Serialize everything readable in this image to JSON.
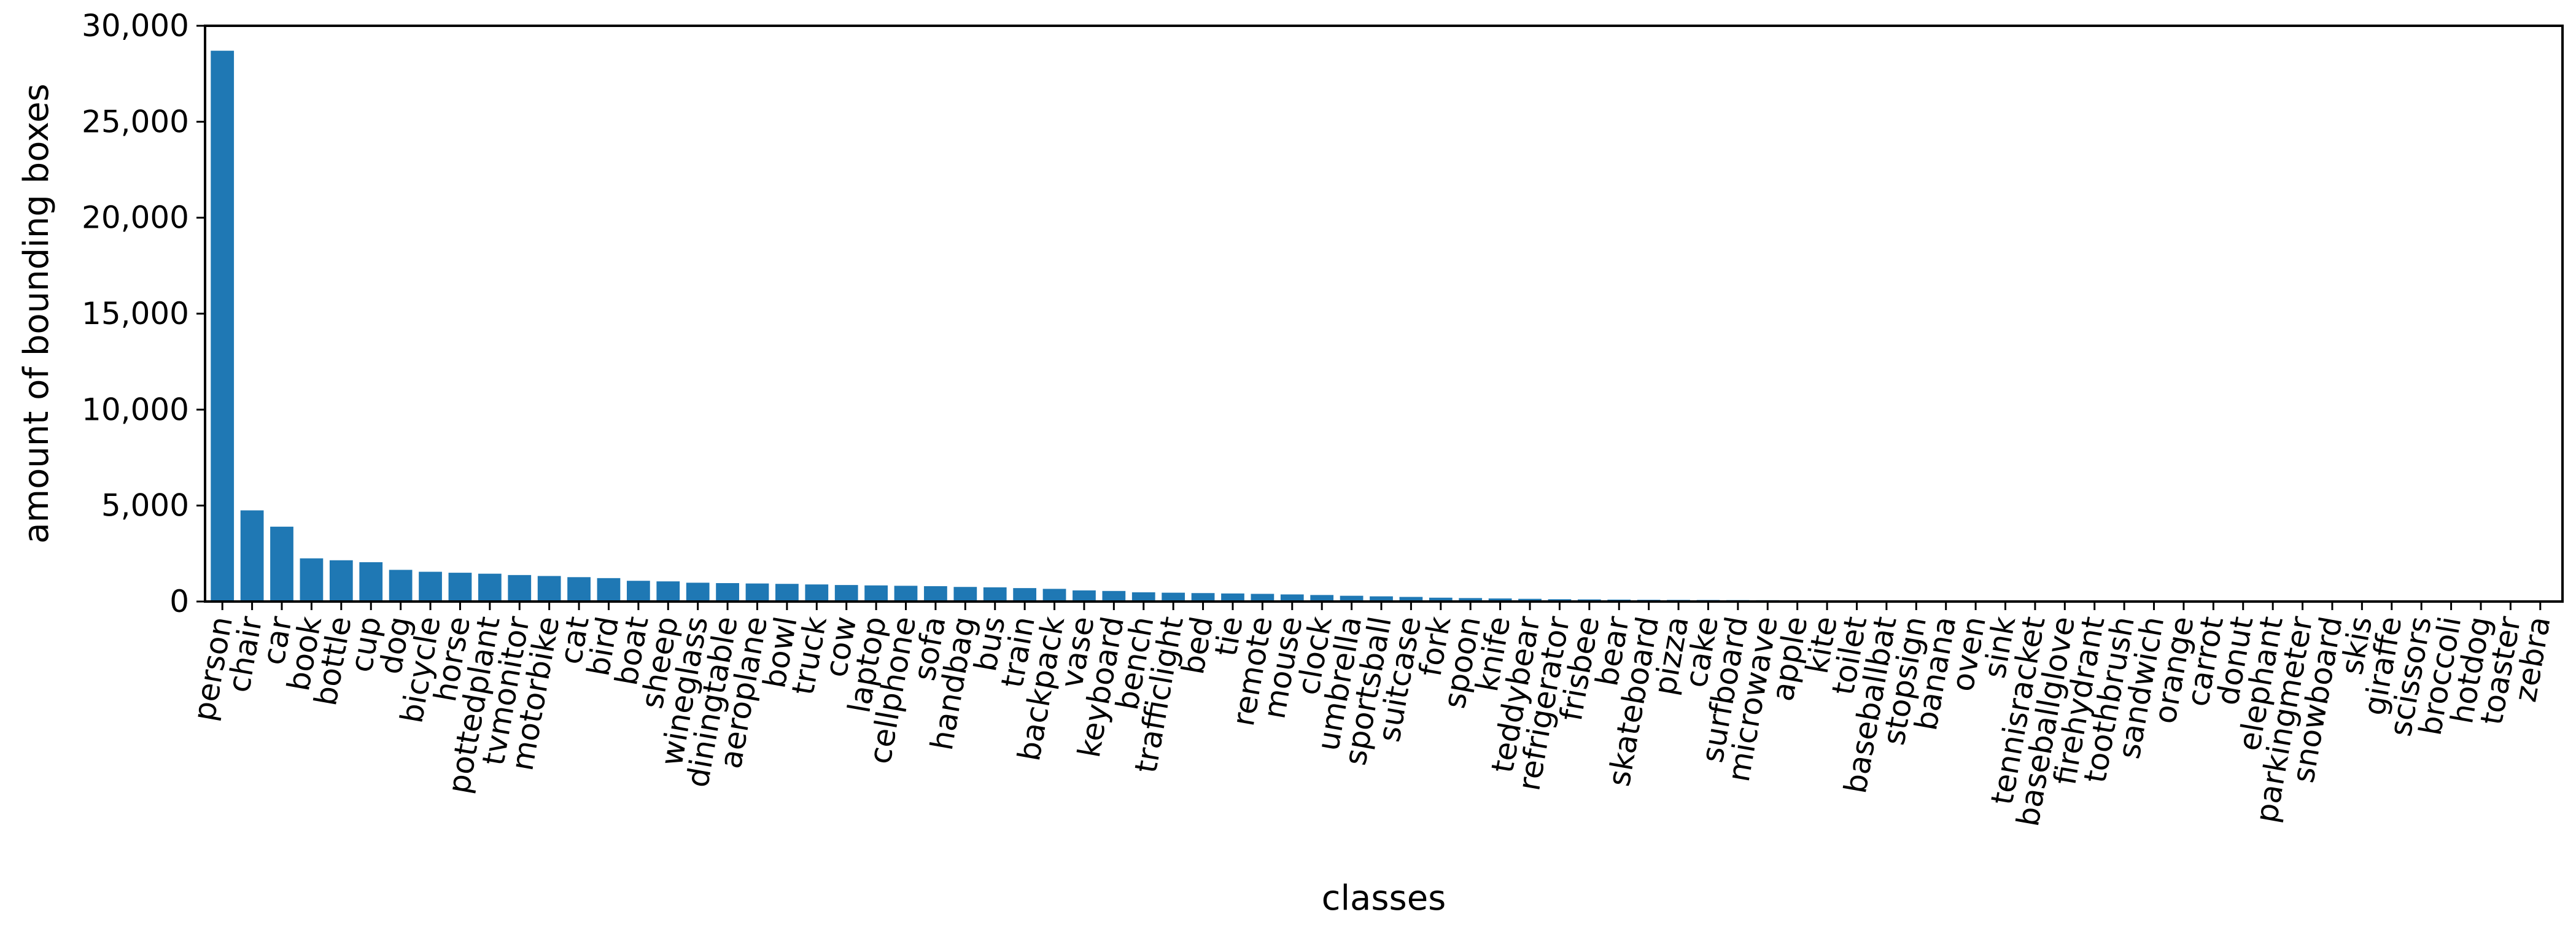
{
  "chart_data": {
    "type": "bar",
    "title": "",
    "xlabel": "classes",
    "ylabel": "amount of bounding boxes",
    "ylim": [
      0,
      30000
    ],
    "yticks": [
      0,
      5000,
      10000,
      15000,
      20000,
      25000,
      30000
    ],
    "ytick_labels": [
      "0",
      "5,000",
      "10,000",
      "15,000",
      "20,000",
      "25,000",
      "30,000"
    ],
    "grid": false,
    "legend": "none",
    "bar_color": "#1f78b4",
    "categories": [
      "person",
      "chair",
      "car",
      "book",
      "bottle",
      "cup",
      "dog",
      "bicycle",
      "horse",
      "pottedplant",
      "tvmonitor",
      "motorbike",
      "cat",
      "bird",
      "boat",
      "sheep",
      "wineglass",
      "diningtable",
      "aeroplane",
      "bowl",
      "truck",
      "cow",
      "laptop",
      "cellphone",
      "sofa",
      "handbag",
      "bus",
      "train",
      "backpack",
      "vase",
      "keyboard",
      "bench",
      "trafficlight",
      "bed",
      "tie",
      "remote",
      "mouse",
      "clock",
      "umbrella",
      "sportsball",
      "suitcase",
      "fork",
      "spoon",
      "knife",
      "teddybear",
      "refrigerator",
      "frisbee",
      "bear",
      "skateboard",
      "pizza",
      "cake",
      "surfboard",
      "microwave",
      "apple",
      "kite",
      "toilet",
      "baseballbat",
      "stopsign",
      "banana",
      "oven",
      "sink",
      "tennisracket",
      "baseballglove",
      "firehydrant",
      "toothbrush",
      "sandwich",
      "orange",
      "carrot",
      "donut",
      "elephant",
      "parkingmeter",
      "snowboard",
      "skis",
      "giraffe",
      "scissors",
      "broccoli",
      "hotdog",
      "toaster",
      "zebra"
    ],
    "values": [
      28700,
      4750,
      3900,
      2250,
      2150,
      2050,
      1650,
      1550,
      1500,
      1450,
      1380,
      1330,
      1270,
      1220,
      1080,
      1050,
      980,
      960,
      940,
      920,
      890,
      860,
      840,
      820,
      800,
      760,
      740,
      700,
      660,
      580,
      550,
      480,
      460,
      440,
      420,
      400,
      370,
      340,
      300,
      270,
      240,
      200,
      180,
      160,
      140,
      120,
      110,
      100,
      90,
      85,
      80,
      75,
      70,
      65,
      60,
      55,
      50,
      45,
      40,
      38,
      35,
      33,
      30,
      28,
      26,
      24,
      22,
      20,
      18,
      16,
      14,
      12,
      11,
      10,
      9,
      8,
      7,
      6,
      5
    ]
  }
}
